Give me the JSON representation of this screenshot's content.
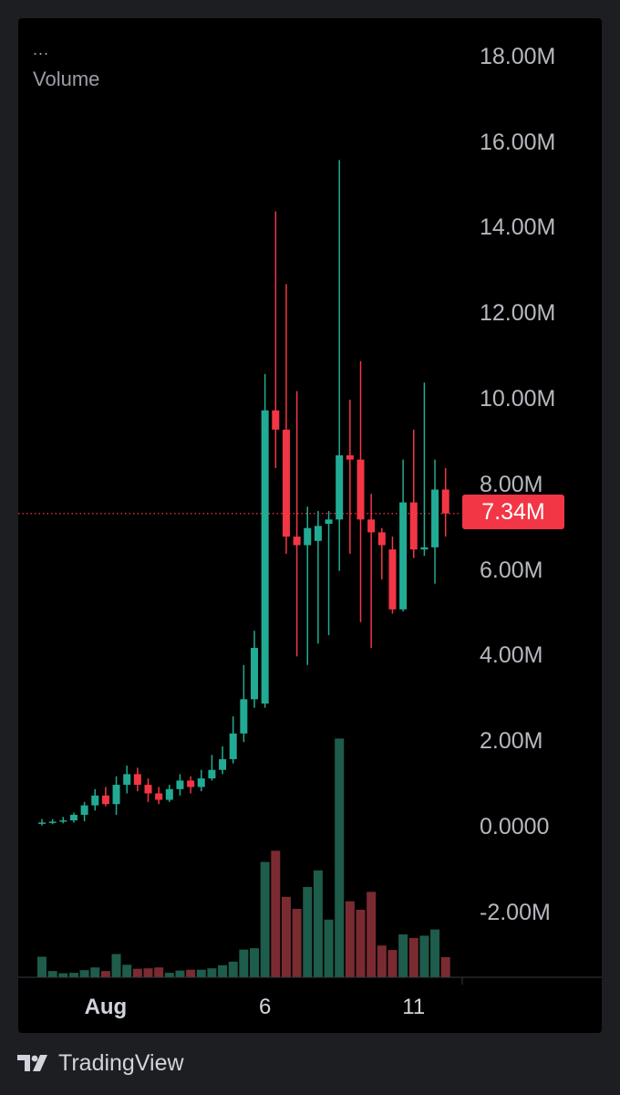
{
  "legend": {
    "dots": "...",
    "title": "Volume"
  },
  "price_tag": "7.34M",
  "brand": {
    "name": "TradingView",
    "logo_icon": "tradingview-logo-icon"
  },
  "colors": {
    "up": "#22ab94",
    "down": "#f23645",
    "vol_up": "#1e5c4b",
    "vol_down": "#7a2b31",
    "background": "#000000",
    "price_line": "#f23645"
  },
  "chart_data": {
    "type": "candlestick",
    "title": "",
    "ylabel": "",
    "ylim": [
      -3.5,
      18.5
    ],
    "y_ticks": [
      "18.00M",
      "16.00M",
      "14.00M",
      "12.00M",
      "10.00M",
      "8.00M",
      "6.00M",
      "4.00M",
      "2.00M",
      "0.0000",
      "-2.00M"
    ],
    "y_tick_values": [
      18,
      16,
      14,
      12,
      10,
      8,
      6,
      4,
      2,
      0,
      -2
    ],
    "x_ticks": [
      {
        "label": "Aug",
        "index": 6
      },
      {
        "label": "6",
        "index": 21
      },
      {
        "label": "11",
        "index": 35
      }
    ],
    "last_value": 7.34,
    "candles": [
      {
        "o": 0.1,
        "h": 0.2,
        "l": 0.05,
        "c": 0.12,
        "v": 0.46
      },
      {
        "o": 0.12,
        "h": 0.2,
        "l": 0.08,
        "c": 0.14,
        "v": 0.14
      },
      {
        "o": 0.14,
        "h": 0.25,
        "l": 0.1,
        "c": 0.17,
        "v": 0.09
      },
      {
        "o": 0.17,
        "h": 0.35,
        "l": 0.12,
        "c": 0.3,
        "v": 0.1
      },
      {
        "o": 0.3,
        "h": 0.6,
        "l": 0.15,
        "c": 0.52,
        "v": 0.16
      },
      {
        "o": 0.52,
        "h": 0.9,
        "l": 0.4,
        "c": 0.75,
        "v": 0.22
      },
      {
        "o": 0.75,
        "h": 0.95,
        "l": 0.5,
        "c": 0.55,
        "v": 0.14
      },
      {
        "o": 0.55,
        "h": 1.2,
        "l": 0.3,
        "c": 1.0,
        "v": 0.52
      },
      {
        "o": 1.0,
        "h": 1.45,
        "l": 0.8,
        "c": 1.25,
        "v": 0.28
      },
      {
        "o": 1.25,
        "h": 1.4,
        "l": 0.85,
        "c": 1.0,
        "v": 0.19
      },
      {
        "o": 1.0,
        "h": 1.15,
        "l": 0.6,
        "c": 0.8,
        "v": 0.2
      },
      {
        "o": 0.8,
        "h": 0.95,
        "l": 0.55,
        "c": 0.65,
        "v": 0.22
      },
      {
        "o": 0.65,
        "h": 1.0,
        "l": 0.6,
        "c": 0.9,
        "v": 0.1
      },
      {
        "o": 0.9,
        "h": 1.25,
        "l": 0.75,
        "c": 1.1,
        "v": 0.15
      },
      {
        "o": 1.1,
        "h": 1.2,
        "l": 0.8,
        "c": 0.95,
        "v": 0.17
      },
      {
        "o": 0.95,
        "h": 1.35,
        "l": 0.85,
        "c": 1.15,
        "v": 0.17
      },
      {
        "o": 1.15,
        "h": 1.7,
        "l": 1.1,
        "c": 1.35,
        "v": 0.2
      },
      {
        "o": 1.35,
        "h": 1.9,
        "l": 1.25,
        "c": 1.6,
        "v": 0.27
      },
      {
        "o": 1.6,
        "h": 2.6,
        "l": 1.5,
        "c": 2.2,
        "v": 0.35
      },
      {
        "o": 2.2,
        "h": 3.8,
        "l": 2.0,
        "c": 3.0,
        "v": 0.62
      },
      {
        "o": 3.0,
        "h": 4.6,
        "l": 2.8,
        "c": 4.2,
        "v": 0.65
      },
      {
        "o": 2.9,
        "h": 10.6,
        "l": 2.8,
        "c": 9.75,
        "v": 2.58
      },
      {
        "o": 9.75,
        "h": 14.4,
        "l": 8.4,
        "c": 9.3,
        "v": 2.83
      },
      {
        "o": 9.3,
        "h": 12.7,
        "l": 6.4,
        "c": 6.8,
        "v": 1.8
      },
      {
        "o": 6.8,
        "h": 10.2,
        "l": 4.0,
        "c": 6.6,
        "v": 1.53
      },
      {
        "o": 6.6,
        "h": 7.5,
        "l": 3.8,
        "c": 7.0,
        "v": 2.02
      },
      {
        "o": 6.7,
        "h": 7.4,
        "l": 4.3,
        "c": 7.05,
        "v": 2.39
      },
      {
        "o": 7.1,
        "h": 7.4,
        "l": 4.5,
        "c": 7.2,
        "v": 1.29
      },
      {
        "o": 7.2,
        "h": 15.6,
        "l": 6.0,
        "c": 8.7,
        "v": 5.34
      },
      {
        "o": 8.7,
        "h": 10.0,
        "l": 6.4,
        "c": 8.6,
        "v": 1.7
      },
      {
        "o": 8.6,
        "h": 10.9,
        "l": 4.8,
        "c": 7.2,
        "v": 1.51
      },
      {
        "o": 7.2,
        "h": 7.8,
        "l": 4.2,
        "c": 6.9,
        "v": 1.91
      },
      {
        "o": 6.9,
        "h": 7.0,
        "l": 5.8,
        "c": 6.6,
        "v": 0.71
      },
      {
        "o": 6.5,
        "h": 6.8,
        "l": 5.0,
        "c": 5.1,
        "v": 0.61
      },
      {
        "o": 5.1,
        "h": 8.6,
        "l": 5.05,
        "c": 7.6,
        "v": 0.96
      },
      {
        "o": 7.6,
        "h": 9.3,
        "l": 6.3,
        "c": 6.5,
        "v": 0.88
      },
      {
        "o": 6.5,
        "h": 10.4,
        "l": 6.35,
        "c": 6.55,
        "v": 0.93
      },
      {
        "o": 6.55,
        "h": 8.6,
        "l": 5.7,
        "c": 7.9,
        "v": 1.07
      },
      {
        "o": 7.9,
        "h": 8.4,
        "l": 6.8,
        "c": 7.34,
        "v": 0.45
      }
    ]
  }
}
